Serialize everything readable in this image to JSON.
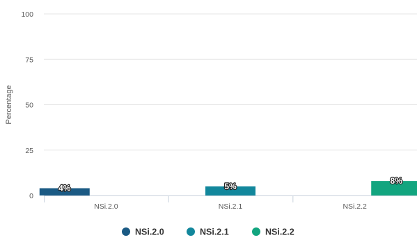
{
  "chart_data": {
    "type": "bar",
    "title": "",
    "xlabel": "",
    "ylabel": "Percentage",
    "ylim": [
      0,
      100
    ],
    "yticks": [
      0,
      25,
      50,
      75,
      100
    ],
    "categories": [
      "NSi.2.0",
      "NSi.2.1",
      "NSi.2.2"
    ],
    "series": [
      {
        "name": "NSi.2.0",
        "category": "NSi.2.0",
        "value": 4,
        "label": "4%",
        "color": "#1b5a84"
      },
      {
        "name": "NSi.2.1",
        "category": "NSi.2.1",
        "value": 5,
        "label": "5%",
        "color": "#12879c"
      },
      {
        "name": "NSi.2.2",
        "category": "NSi.2.2",
        "value": 8,
        "label": "8%",
        "color": "#12a57f"
      }
    ],
    "grid": true,
    "legend_position": "bottom"
  }
}
